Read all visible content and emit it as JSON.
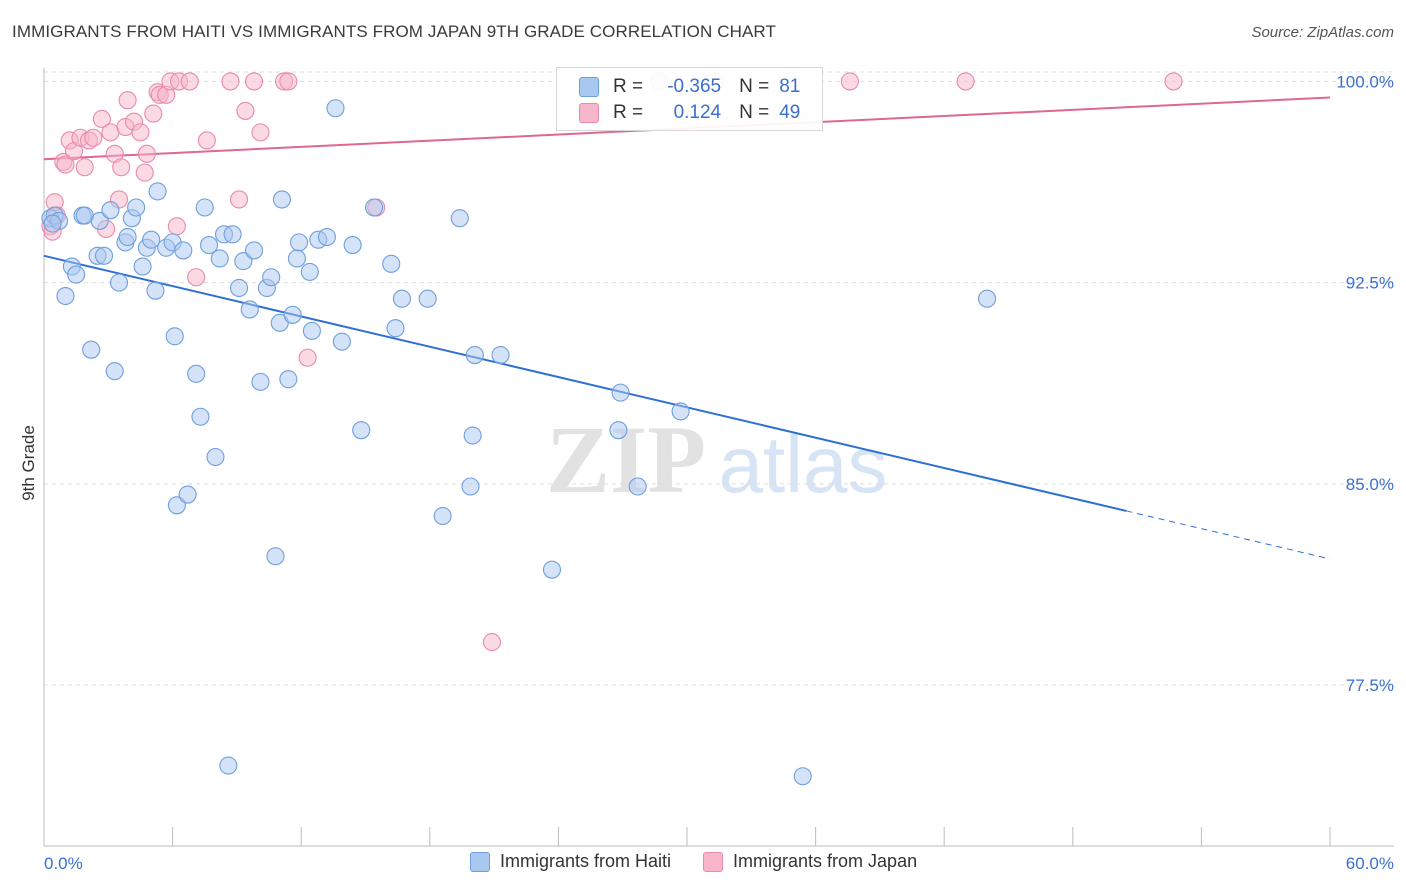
{
  "title": "IMMIGRANTS FROM HAITI VS IMMIGRANTS FROM JAPAN 9TH GRADE CORRELATION CHART",
  "source": "Source: ZipAtlas.com",
  "watermark": {
    "zip": "ZIP",
    "atlas": "atlas"
  },
  "stats": {
    "haiti": {
      "r_label": "R =",
      "r_value": "-0.365",
      "n_label": "N =",
      "n_value": "81"
    },
    "japan": {
      "r_label": "R =",
      "r_value": "0.124",
      "n_label": "N =",
      "n_value": "49"
    }
  },
  "legend": {
    "haiti": "Immigrants from Haiti",
    "japan": "Immigrants from Japan"
  },
  "colors": {
    "haiti_fill": "#a9c8f0",
    "haiti_stroke": "#6f9fdc",
    "haiti_line": "#2f6fd4",
    "japan_fill": "#f7b6ca",
    "japan_stroke": "#e98aa9",
    "japan_line": "#e0678f",
    "tick_label": "#3a6fcf",
    "grid": "#dddddd"
  },
  "chart_data": {
    "type": "scatter",
    "title": "IMMIGRANTS FROM HAITI VS IMMIGRANTS FROM JAPAN 9TH GRADE CORRELATION CHART",
    "xlabel": "",
    "ylabel": "9th Grade",
    "xlim": [
      0,
      60
    ],
    "ylim": [
      71.5,
      100.5
    ],
    "x_tick_labels": [
      "0.0%",
      "60.0%"
    ],
    "y_ticks": [
      77.5,
      85.0,
      92.5,
      100.0
    ],
    "y_tick_labels": [
      "77.5%",
      "85.0%",
      "92.5%",
      "100.0%"
    ],
    "grid": "horizontal dashed",
    "legend_position": "bottom-center",
    "series": [
      {
        "name": "Immigrants from Haiti",
        "r": -0.365,
        "n": 81,
        "trend": {
          "x0": 0,
          "y0": 93.5,
          "x1": 60,
          "y1": 82.2,
          "solid_until_x": 50.5
        },
        "points": [
          [
            0.3,
            94.9
          ],
          [
            0.5,
            95.0
          ],
          [
            0.7,
            94.8
          ],
          [
            1.0,
            92.0
          ],
          [
            1.3,
            93.1
          ],
          [
            1.5,
            92.8
          ],
          [
            1.8,
            95.0
          ],
          [
            2.2,
            90.0
          ],
          [
            2.5,
            93.5
          ],
          [
            2.6,
            94.8
          ],
          [
            2.8,
            93.5
          ],
          [
            3.1,
            95.2
          ],
          [
            3.3,
            89.2
          ],
          [
            3.5,
            92.5
          ],
          [
            3.8,
            94.0
          ],
          [
            3.9,
            94.2
          ],
          [
            4.1,
            94.9
          ],
          [
            4.3,
            95.3
          ],
          [
            4.6,
            93.1
          ],
          [
            4.8,
            93.8
          ],
          [
            5.0,
            94.1
          ],
          [
            5.2,
            92.2
          ],
          [
            5.3,
            95.9
          ],
          [
            5.7,
            93.8
          ],
          [
            6.0,
            94.0
          ],
          [
            6.1,
            90.5
          ],
          [
            6.5,
            93.7
          ],
          [
            7.1,
            89.1
          ],
          [
            7.3,
            87.5
          ],
          [
            7.5,
            95.3
          ],
          [
            7.7,
            93.9
          ],
          [
            8.0,
            86.0
          ],
          [
            8.2,
            93.4
          ],
          [
            8.4,
            94.3
          ],
          [
            8.6,
            74.5
          ],
          [
            8.8,
            94.3
          ],
          [
            9.1,
            92.3
          ],
          [
            9.3,
            93.3
          ],
          [
            9.6,
            91.5
          ],
          [
            9.8,
            93.7
          ],
          [
            10.1,
            88.8
          ],
          [
            10.4,
            92.3
          ],
          [
            10.6,
            92.7
          ],
          [
            10.8,
            82.3
          ],
          [
            11.0,
            91.0
          ],
          [
            11.1,
            95.6
          ],
          [
            11.4,
            88.9
          ],
          [
            11.6,
            91.3
          ],
          [
            11.8,
            93.4
          ],
          [
            11.9,
            94.0
          ],
          [
            12.4,
            92.9
          ],
          [
            12.5,
            90.7
          ],
          [
            12.8,
            94.1
          ],
          [
            13.2,
            94.2
          ],
          [
            13.6,
            99.0
          ],
          [
            13.9,
            90.3
          ],
          [
            14.4,
            93.9
          ],
          [
            14.8,
            87.0
          ],
          [
            15.4,
            95.3
          ],
          [
            16.2,
            93.2
          ],
          [
            16.4,
            90.8
          ],
          [
            16.7,
            91.9
          ],
          [
            17.9,
            91.9
          ],
          [
            18.6,
            83.8
          ],
          [
            19.4,
            94.9
          ],
          [
            19.9,
            84.9
          ],
          [
            20.0,
            86.8
          ],
          [
            20.1,
            89.8
          ],
          [
            21.3,
            89.8
          ],
          [
            23.7,
            81.8
          ],
          [
            26.8,
            87.0
          ],
          [
            26.9,
            88.4
          ],
          [
            27.7,
            84.9
          ],
          [
            29.7,
            87.7
          ],
          [
            30.6,
            100.0
          ],
          [
            35.4,
            74.1
          ],
          [
            44.0,
            91.9
          ],
          [
            6.2,
            84.2
          ],
          [
            6.7,
            84.6
          ],
          [
            0.4,
            94.7
          ],
          [
            1.9,
            95.0
          ]
        ]
      },
      {
        "name": "Immigrants from Japan",
        "r": 0.124,
        "n": 49,
        "trend": {
          "x0": 0,
          "y0": 97.1,
          "x1": 60,
          "y1": 99.4
        },
        "points": [
          [
            0.3,
            94.6
          ],
          [
            0.5,
            95.5
          ],
          [
            0.6,
            95.0
          ],
          [
            0.9,
            97.0
          ],
          [
            1.0,
            96.9
          ],
          [
            1.2,
            97.8
          ],
          [
            1.4,
            97.4
          ],
          [
            1.7,
            97.9
          ],
          [
            1.9,
            96.8
          ],
          [
            2.1,
            97.8
          ],
          [
            2.3,
            97.9
          ],
          [
            2.7,
            98.6
          ],
          [
            2.9,
            94.5
          ],
          [
            3.1,
            98.1
          ],
          [
            3.3,
            97.3
          ],
          [
            3.5,
            95.6
          ],
          [
            3.6,
            96.8
          ],
          [
            3.8,
            98.3
          ],
          [
            3.9,
            99.3
          ],
          [
            4.2,
            98.5
          ],
          [
            4.5,
            98.1
          ],
          [
            4.7,
            96.6
          ],
          [
            4.8,
            97.3
          ],
          [
            5.1,
            98.8
          ],
          [
            5.3,
            99.6
          ],
          [
            5.4,
            99.5
          ],
          [
            5.7,
            99.5
          ],
          [
            5.9,
            100.0
          ],
          [
            6.2,
            94.6
          ],
          [
            6.3,
            100.0
          ],
          [
            6.8,
            100.0
          ],
          [
            7.1,
            92.7
          ],
          [
            7.6,
            97.8
          ],
          [
            8.7,
            100.0
          ],
          [
            9.1,
            95.6
          ],
          [
            9.4,
            98.9
          ],
          [
            9.8,
            100.0
          ],
          [
            10.1,
            98.1
          ],
          [
            11.2,
            100.0
          ],
          [
            11.4,
            100.0
          ],
          [
            12.3,
            89.7
          ],
          [
            15.5,
            95.3
          ],
          [
            20.9,
            79.1
          ],
          [
            28.7,
            100.0
          ],
          [
            31.3,
            100.0
          ],
          [
            37.6,
            100.0
          ],
          [
            43.0,
            100.0
          ],
          [
            52.7,
            100.0
          ],
          [
            0.4,
            94.4
          ]
        ]
      }
    ]
  }
}
